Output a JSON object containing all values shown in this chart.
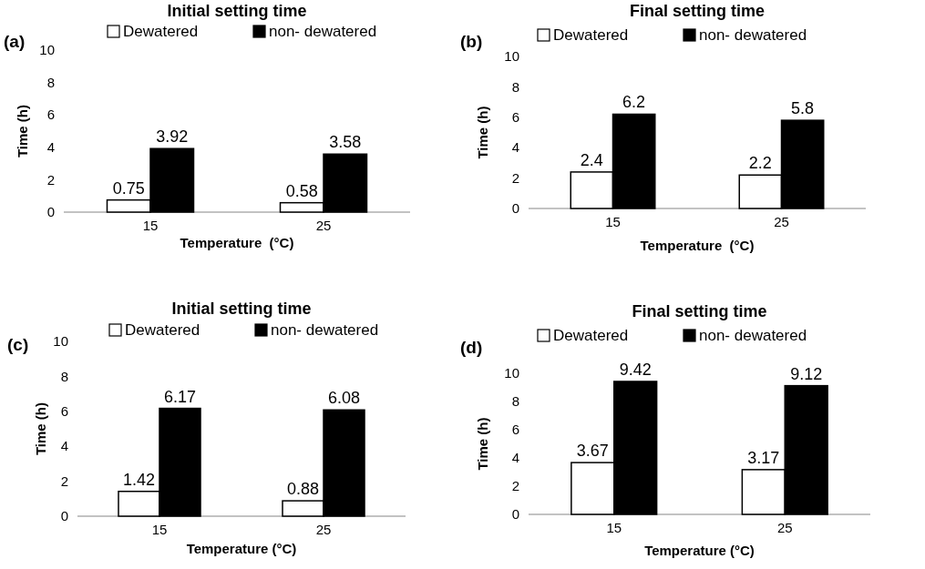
{
  "chart_data": [
    {
      "type": "bar",
      "title": "Initial setting time",
      "xlabel": "Temperature  (°C)",
      "ylabel": "Time (h)",
      "annotations": [
        "(a)"
      ],
      "categories": [
        "15",
        "25"
      ],
      "series": [
        {
          "name": "Dewatered",
          "color": "#ffffff",
          "values": [
            0.75,
            0.58
          ]
        },
        {
          "name": "non- dewatered",
          "color": "#000000",
          "values": [
            3.92,
            3.58
          ]
        }
      ],
      "ylim": [
        0,
        10
      ],
      "yticks": [
        0,
        2,
        4,
        6,
        8,
        10
      ],
      "data_labels": true,
      "legend": "top",
      "grid": false
    },
    {
      "type": "bar",
      "title": "Final setting time",
      "xlabel": "Temperature  (°C)",
      "ylabel": "Time (h)",
      "annotations": [
        "(b)"
      ],
      "categories": [
        "15",
        "25"
      ],
      "series": [
        {
          "name": "Dewatered",
          "color": "#ffffff",
          "values": [
            2.4,
            2.2
          ]
        },
        {
          "name": "non- dewatered",
          "color": "#000000",
          "values": [
            6.2,
            5.8
          ]
        }
      ],
      "ylim": [
        0,
        10
      ],
      "yticks": [
        0,
        2,
        4,
        6,
        8,
        10
      ],
      "data_labels": true,
      "legend": "top",
      "grid": false
    },
    {
      "type": "bar",
      "title": "Initial setting time",
      "xlabel": "Temperature (°C)",
      "ylabel": "Time (h)",
      "annotations": [
        "(c)"
      ],
      "categories": [
        "15",
        "25"
      ],
      "series": [
        {
          "name": "Dewatered",
          "color": "#ffffff",
          "values": [
            1.42,
            0.88
          ]
        },
        {
          "name": "non- dewatered",
          "color": "#000000",
          "values": [
            6.17,
            6.08
          ]
        }
      ],
      "ylim": [
        0,
        10
      ],
      "yticks": [
        0,
        2,
        4,
        6,
        8,
        10
      ],
      "data_labels": true,
      "legend": "top",
      "grid": false
    },
    {
      "type": "bar",
      "title": "Final setting time",
      "xlabel": "Temperature (°C)",
      "ylabel": "Time (h)",
      "annotations": [
        "(d)"
      ],
      "categories": [
        "15",
        "25"
      ],
      "series": [
        {
          "name": "Dewatered",
          "color": "#ffffff",
          "values": [
            3.67,
            3.17
          ]
        },
        {
          "name": "non- dewatered",
          "color": "#000000",
          "values": [
            9.42,
            9.12
          ]
        }
      ],
      "ylim": [
        0,
        10
      ],
      "yticks": [
        0,
        2,
        4,
        6,
        8,
        10
      ],
      "data_labels": true,
      "legend": "top",
      "grid": false
    }
  ]
}
